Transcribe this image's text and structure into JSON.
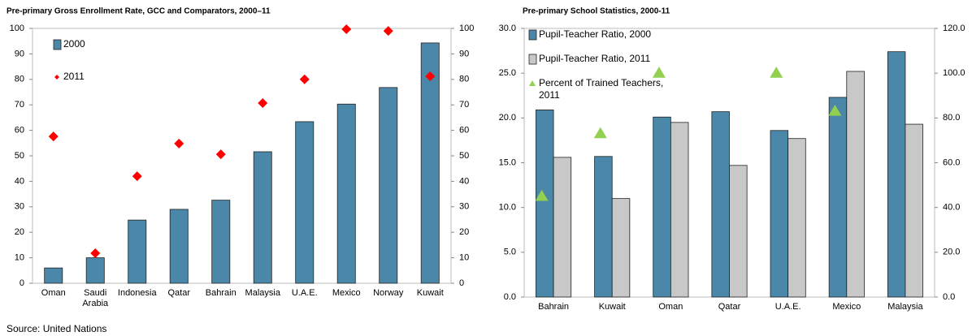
{
  "chart_data": [
    {
      "type": "bar",
      "title": "Pre-primary Gross Enrollment Rate, GCC and Comparators, 2000–11",
      "categories": [
        "Oman",
        "Saudi Arabia",
        "Indonesia",
        "Qatar",
        "Bahrain",
        "Malaysia",
        "U.A.E.",
        "Mexico",
        "Norway",
        "Kuwait"
      ],
      "series": [
        {
          "name": "2000",
          "type": "bar",
          "color": "#4a87a8",
          "values": [
            6,
            10,
            24.8,
            29,
            32.6,
            51.6,
            63.4,
            70.3,
            76.8,
            94.3
          ]
        },
        {
          "name": "2011",
          "type": "diamond",
          "color": "#ff0000",
          "values": [
            57.6,
            11.8,
            42,
            54.8,
            50.6,
            70.7,
            80,
            99.7,
            99,
            81.2
          ]
        }
      ],
      "ylim": [
        0,
        100
      ],
      "yticks": [
        0,
        10,
        20,
        30,
        40,
        50,
        60,
        70,
        80,
        90,
        100
      ],
      "y2lim": [
        0,
        100
      ],
      "y2ticks": [
        0,
        10,
        20,
        30,
        40,
        50,
        60,
        70,
        80,
        90,
        100
      ]
    },
    {
      "type": "bar",
      "title": "Pre-primary School Statistics, 2000-11",
      "categories": [
        "Bahrain",
        "Kuwait",
        "Oman",
        "Qatar",
        "U.A.E.",
        "Mexico",
        "Malaysia"
      ],
      "series": [
        {
          "name": "Pupil-Teacher Ratio, 2000",
          "type": "bar",
          "color": "#4a87a8",
          "values": [
            20.9,
            15.7,
            20.1,
            20.7,
            18.6,
            22.3,
            27.4
          ]
        },
        {
          "name": "Pupil-Teacher Ratio, 2011",
          "type": "bar",
          "color": "#c8c8c8",
          "values": [
            15.6,
            11,
            19.5,
            14.7,
            17.7,
            25.2,
            19.3
          ]
        },
        {
          "name": "Percent of Trained Teachers, 2011",
          "type": "triangle",
          "color": "#92d050",
          "axis": "y2",
          "values": [
            45,
            73,
            100,
            null,
            100,
            83,
            null
          ]
        }
      ],
      "ylim": [
        0,
        30
      ],
      "yticks": [
        {
          "value": 0,
          "label": "0.0"
        },
        {
          "value": 5,
          "label": "5.0"
        },
        {
          "value": 10,
          "label": "10.0"
        },
        {
          "value": 15,
          "label": "15.0"
        },
        {
          "value": 20,
          "label": "20.0"
        },
        {
          "value": 25,
          "label": "25.0"
        },
        {
          "value": 30,
          "label": "30.0"
        }
      ],
      "y2lim": [
        0,
        120
      ],
      "y2ticks": [
        {
          "value": 0,
          "label": "0.0"
        },
        {
          "value": 20,
          "label": "20.0"
        },
        {
          "value": 40,
          "label": "40.0"
        },
        {
          "value": 60,
          "label": "60.0"
        },
        {
          "value": 80,
          "label": "80.0"
        },
        {
          "value": 100,
          "label": "100.0"
        },
        {
          "value": 120,
          "label": "120.0"
        }
      ]
    }
  ],
  "source": "Source: United Nations"
}
